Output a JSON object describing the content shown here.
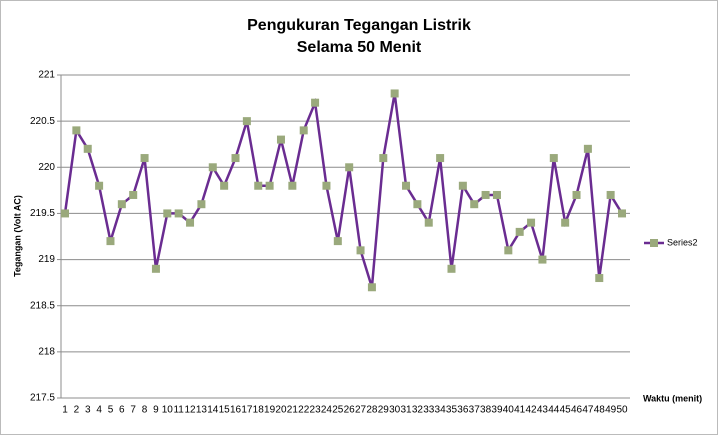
{
  "chart_data": {
    "type": "line",
    "title": [
      "Pengukuran Tegangan  Listrik",
      "Selama 50 Menit"
    ],
    "y_label": "Tegangan (Volt AC)",
    "x_label": "Waktu (menit)",
    "categories": [
      "1",
      "2",
      "3",
      "4",
      "5",
      "6",
      "7",
      "8",
      "9",
      "10",
      "11",
      "12",
      "13",
      "14",
      "15",
      "16",
      "17",
      "18",
      "19",
      "20",
      "21",
      "22",
      "23",
      "24",
      "25",
      "26",
      "27",
      "28",
      "29",
      "30",
      "31",
      "32",
      "33",
      "34",
      "35",
      "36",
      "37",
      "38",
      "39",
      "40",
      "41",
      "42",
      "43",
      "44",
      "45",
      "46",
      "47",
      "48",
      "49",
      "50"
    ],
    "series": [
      {
        "name": "Series2",
        "color": "#6a2c91",
        "marker_color": "#9aa97c",
        "values": [
          219.5,
          220.4,
          220.2,
          219.8,
          219.2,
          219.6,
          219.7,
          220.1,
          218.9,
          219.5,
          219.5,
          219.4,
          219.6,
          220.0,
          219.8,
          220.1,
          220.5,
          219.8,
          219.8,
          220.3,
          219.8,
          220.4,
          220.7,
          219.8,
          219.2,
          220.0,
          219.1,
          218.7,
          220.1,
          220.8,
          219.8,
          219.6,
          219.4,
          220.1,
          218.9,
          219.8,
          219.6,
          219.7,
          219.7,
          219.1,
          219.3,
          219.4,
          219.0,
          220.1,
          219.4,
          219.7,
          220.2,
          218.8,
          219.7,
          219.5
        ]
      }
    ],
    "ylim": [
      217.5,
      221
    ],
    "yticks": [
      217.5,
      218,
      218.5,
      219,
      219.5,
      220,
      220.5,
      221
    ],
    "grid": true,
    "legend": "right"
  }
}
